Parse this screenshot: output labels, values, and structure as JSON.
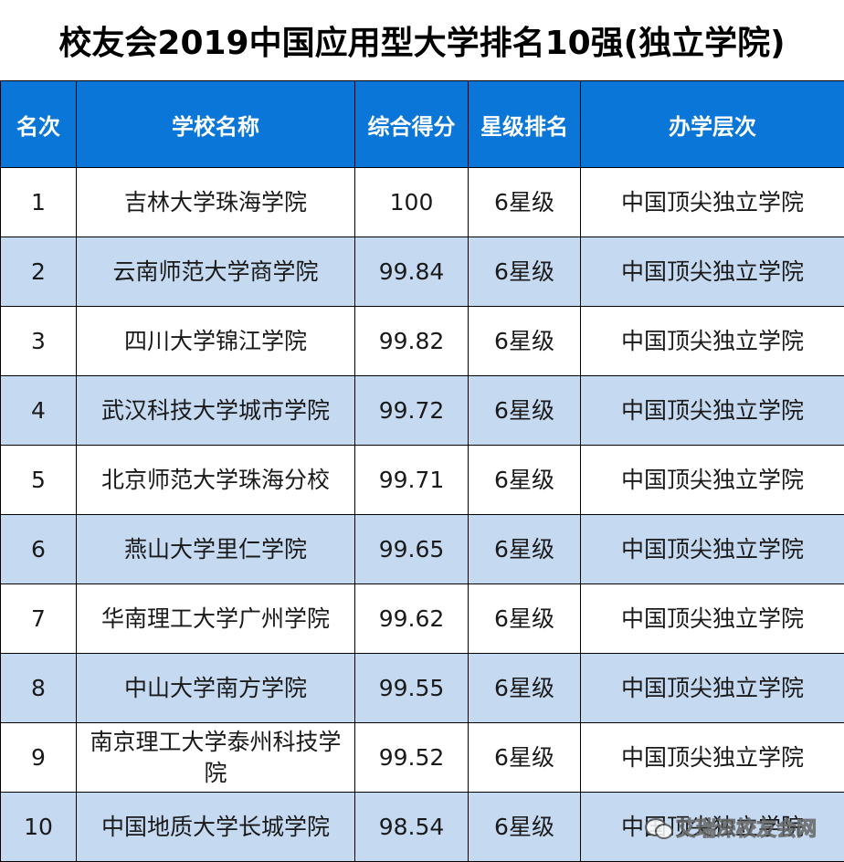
{
  "title": "校友会2019中国应用型大学排名10强(独立学院)",
  "table": {
    "headers": [
      "名次",
      "学校名称",
      "综合得分",
      "星级排名",
      "办学层次"
    ],
    "rows": [
      {
        "rank": "1",
        "school": "吉林大学珠海学院",
        "score": "100",
        "stars": "6星级",
        "level": "中国顶尖独立学院"
      },
      {
        "rank": "2",
        "school": "云南师范大学商学院",
        "score": "99.84",
        "stars": "6星级",
        "level": "中国顶尖独立学院"
      },
      {
        "rank": "3",
        "school": "四川大学锦江学院",
        "score": "99.82",
        "stars": "6星级",
        "level": "中国顶尖独立学院"
      },
      {
        "rank": "4",
        "school": "武汉科技大学城市学院",
        "score": "99.72",
        "stars": "6星级",
        "level": "中国顶尖独立学院"
      },
      {
        "rank": "5",
        "school": "北京师范大学珠海分校",
        "score": "99.71",
        "stars": "6星级",
        "level": "中国顶尖独立学院"
      },
      {
        "rank": "6",
        "school": "燕山大学里仁学院",
        "score": "99.65",
        "stars": "6星级",
        "level": "中国顶尖独立学院"
      },
      {
        "rank": "7",
        "school": "华南理工大学广州学院",
        "score": "99.62",
        "stars": "6星级",
        "level": "中国顶尖独立学院"
      },
      {
        "rank": "8",
        "school": "中山大学南方学院",
        "score": "99.55",
        "stars": "6星级",
        "level": "中国顶尖独立学院"
      },
      {
        "rank": "9",
        "school": "南京理工大学泰州科技学院",
        "score": "99.52",
        "stars": "6星级",
        "level": "中国顶尖独立学院"
      },
      {
        "rank": "10",
        "school": "中国地质大学长城学院",
        "score": "98.54",
        "stars": "6星级",
        "level": "中国顶尖独立学院"
      }
    ]
  },
  "watermark": {
    "text": "艾瑞深校友会网",
    "icon": "wechat-icon"
  },
  "colors": {
    "header_bg": "#0a76d8",
    "header_text": "#ffffff",
    "row_alt_bg": "#c5d9f1",
    "row_bg": "#ffffff",
    "border": "#000000"
  }
}
